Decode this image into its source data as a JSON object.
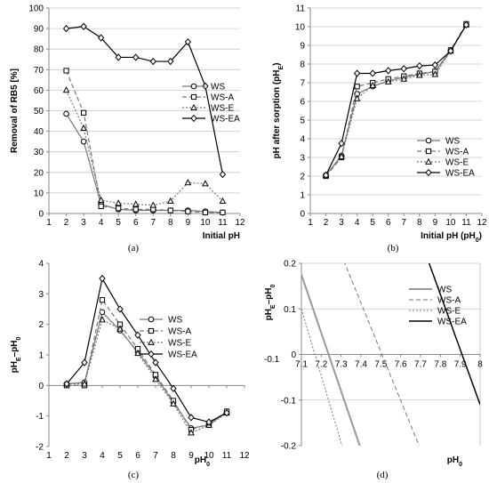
{
  "chart_data": [
    {
      "type": "line",
      "panel_label": "(a)",
      "xlabel": "Initial  pH",
      "ylabel": "Removal of RB5 [%]",
      "xlim": [
        1,
        12
      ],
      "ylim": [
        0,
        100
      ],
      "xticks": [
        1,
        2,
        3,
        4,
        5,
        6,
        7,
        8,
        9,
        10,
        11,
        12
      ],
      "yticks": [
        0,
        10,
        20,
        30,
        40,
        50,
        60,
        70,
        80,
        90,
        100
      ],
      "grid": "horizontal",
      "legend": "right",
      "series": [
        {
          "name": "WS",
          "marker": "circle",
          "color": "#777777",
          "dash": "",
          "x": [
            2,
            3,
            4,
            5,
            6,
            7,
            8,
            9,
            10,
            11
          ],
          "y": [
            48.5,
            35,
            4.5,
            2,
            1.5,
            1.5,
            1.5,
            1.5,
            1,
            0.5
          ]
        },
        {
          "name": "WS-A",
          "marker": "square",
          "color": "#777777",
          "dash": "5,3",
          "x": [
            2,
            3,
            4,
            5,
            6,
            7,
            8,
            9,
            10,
            11
          ],
          "y": [
            69.5,
            49,
            3.5,
            2.5,
            2,
            2,
            1.5,
            1,
            0.5,
            0.5
          ]
        },
        {
          "name": "WS-E",
          "marker": "triangle",
          "color": "#777777",
          "dash": "2,2",
          "x": [
            2,
            3,
            4,
            5,
            6,
            7,
            8,
            9,
            10,
            11
          ],
          "y": [
            60,
            41.5,
            6.5,
            5,
            4.5,
            4,
            6,
            15,
            14.5,
            6
          ]
        },
        {
          "name": "WS-EA",
          "marker": "diamond",
          "color": "#000000",
          "dash": "",
          "x": [
            2,
            3,
            4,
            5,
            6,
            7,
            8,
            9,
            10,
            11
          ],
          "y": [
            90,
            91,
            85.5,
            76,
            76,
            74,
            74,
            83.5,
            62,
            19
          ]
        }
      ]
    },
    {
      "type": "line",
      "panel_label": "(b)",
      "xlabel": "Initial  pH (pH₀)",
      "ylabel": "pH after sorption (pH_E)",
      "xlim": [
        1,
        12
      ],
      "ylim": [
        0,
        11
      ],
      "xticks": [
        1,
        2,
        3,
        4,
        5,
        6,
        7,
        8,
        9,
        10,
        11,
        12
      ],
      "yticks": [
        0,
        1,
        2,
        3,
        4,
        5,
        6,
        7,
        8,
        9,
        10,
        11
      ],
      "grid": "horizontal",
      "legend": "bottom-right",
      "series": [
        {
          "name": "WS",
          "marker": "circle",
          "color": "#777777",
          "dash": "",
          "x": [
            2,
            3,
            4,
            5,
            6,
            7,
            8,
            9,
            10,
            11
          ],
          "y": [
            2.05,
            3.1,
            6.4,
            6.8,
            7.1,
            7.3,
            7.45,
            7.6,
            8.7,
            10.1
          ]
        },
        {
          "name": "WS-A",
          "marker": "square",
          "color": "#777777",
          "dash": "5,3",
          "x": [
            2,
            3,
            4,
            5,
            6,
            7,
            8,
            9,
            10,
            11
          ],
          "y": [
            2.0,
            3.0,
            6.8,
            7.0,
            7.2,
            7.35,
            7.5,
            7.6,
            8.75,
            10.15
          ]
        },
        {
          "name": "WS-E",
          "marker": "triangle",
          "color": "#777777",
          "dash": "2,2",
          "x": [
            2,
            3,
            4,
            5,
            6,
            7,
            8,
            9,
            10,
            11
          ],
          "y": [
            2.05,
            3.05,
            6.15,
            6.85,
            7.05,
            7.2,
            7.4,
            7.45,
            8.7,
            10.1
          ]
        },
        {
          "name": "WS-EA",
          "marker": "diamond",
          "color": "#000000",
          "dash": "",
          "x": [
            2,
            3,
            4,
            5,
            6,
            7,
            8,
            9,
            10,
            11
          ],
          "y": [
            2.05,
            3.75,
            7.5,
            7.5,
            7.65,
            7.75,
            7.9,
            7.95,
            8.7,
            10.1
          ]
        }
      ]
    },
    {
      "type": "line",
      "panel_label": "(c)",
      "xlabel": "pH₀",
      "ylabel": "pH_E–pH₀",
      "xlim": [
        1,
        12
      ],
      "ylim": [
        -2,
        4
      ],
      "xticks": [
        1,
        2,
        3,
        4,
        5,
        6,
        7,
        8,
        9,
        10,
        11,
        12
      ],
      "yticks": [
        -2,
        -1,
        0,
        1,
        2,
        3,
        4
      ],
      "grid": "none",
      "legend": "right",
      "series": [
        {
          "name": "WS",
          "marker": "circle",
          "color": "#777777",
          "dash": "",
          "x": [
            2,
            3,
            4,
            5,
            6,
            7,
            8,
            9,
            10,
            11
          ],
          "y": [
            0.05,
            0.1,
            2.4,
            1.8,
            1.1,
            0.3,
            -0.55,
            -1.4,
            -1.3,
            -0.85
          ]
        },
        {
          "name": "WS-A",
          "marker": "square",
          "color": "#777777",
          "dash": "5,3",
          "x": [
            2,
            3,
            4,
            5,
            6,
            7,
            8,
            9,
            10,
            11
          ],
          "y": [
            0.0,
            0.0,
            2.8,
            2.0,
            1.2,
            0.35,
            -0.5,
            -1.45,
            -1.25,
            -0.85
          ]
        },
        {
          "name": "WS-E",
          "marker": "triangle",
          "color": "#777777",
          "dash": "2,2",
          "x": [
            2,
            3,
            4,
            5,
            6,
            7,
            8,
            9,
            10,
            11
          ],
          "y": [
            0.05,
            0.05,
            2.15,
            1.85,
            1.05,
            0.2,
            -0.6,
            -1.55,
            -1.3,
            -0.9
          ]
        },
        {
          "name": "WS-EA",
          "marker": "diamond",
          "color": "#000000",
          "dash": "",
          "x": [
            2,
            3,
            4,
            5,
            6,
            7,
            8,
            9,
            10,
            11
          ],
          "y": [
            0.05,
            0.75,
            3.5,
            2.5,
            1.65,
            0.75,
            -0.1,
            -1.05,
            -1.2,
            -0.9
          ]
        }
      ]
    },
    {
      "type": "line",
      "panel_label": "(d)",
      "xlabel": "pH₀",
      "ylabel": "pH_E–pH₀",
      "xlim": [
        7.1,
        8.0
      ],
      "ylim": [
        -0.2,
        0.2
      ],
      "xticks": [
        7.1,
        7.2,
        7.3,
        7.4,
        7.5,
        7.6,
        7.7,
        7.8,
        7.9,
        8
      ],
      "yticks": [
        -0.2,
        -0.1,
        0,
        0.1,
        0.2
      ],
      "ytick_labels": [
        "-0.2",
        "-0.1",
        "0",
        "0.1",
        "0.2"
      ],
      "stray_label": "-0.1",
      "grid": "horizontal",
      "legend": "top-right",
      "series": [
        {
          "name": "WS",
          "color": "#999999",
          "dash": "",
          "width": 2,
          "x": [
            7.1,
            7.4
          ],
          "y": [
            0.175,
            -0.208
          ]
        },
        {
          "name": "WS-A",
          "color": "#777777",
          "dash": "5,3",
          "width": 1,
          "x": [
            7.3,
            7.7
          ],
          "y": [
            0.22,
            -0.208
          ]
        },
        {
          "name": "WS-E",
          "color": "#777777",
          "dash": "2,2",
          "width": 1,
          "x": [
            7.1,
            7.31
          ],
          "y": [
            0.1,
            -0.208
          ]
        },
        {
          "name": "WS-EA",
          "color": "#000000",
          "dash": "",
          "width": 1.5,
          "x": [
            7.735,
            8.0
          ],
          "y": [
            0.21,
            -0.11
          ]
        }
      ]
    }
  ]
}
